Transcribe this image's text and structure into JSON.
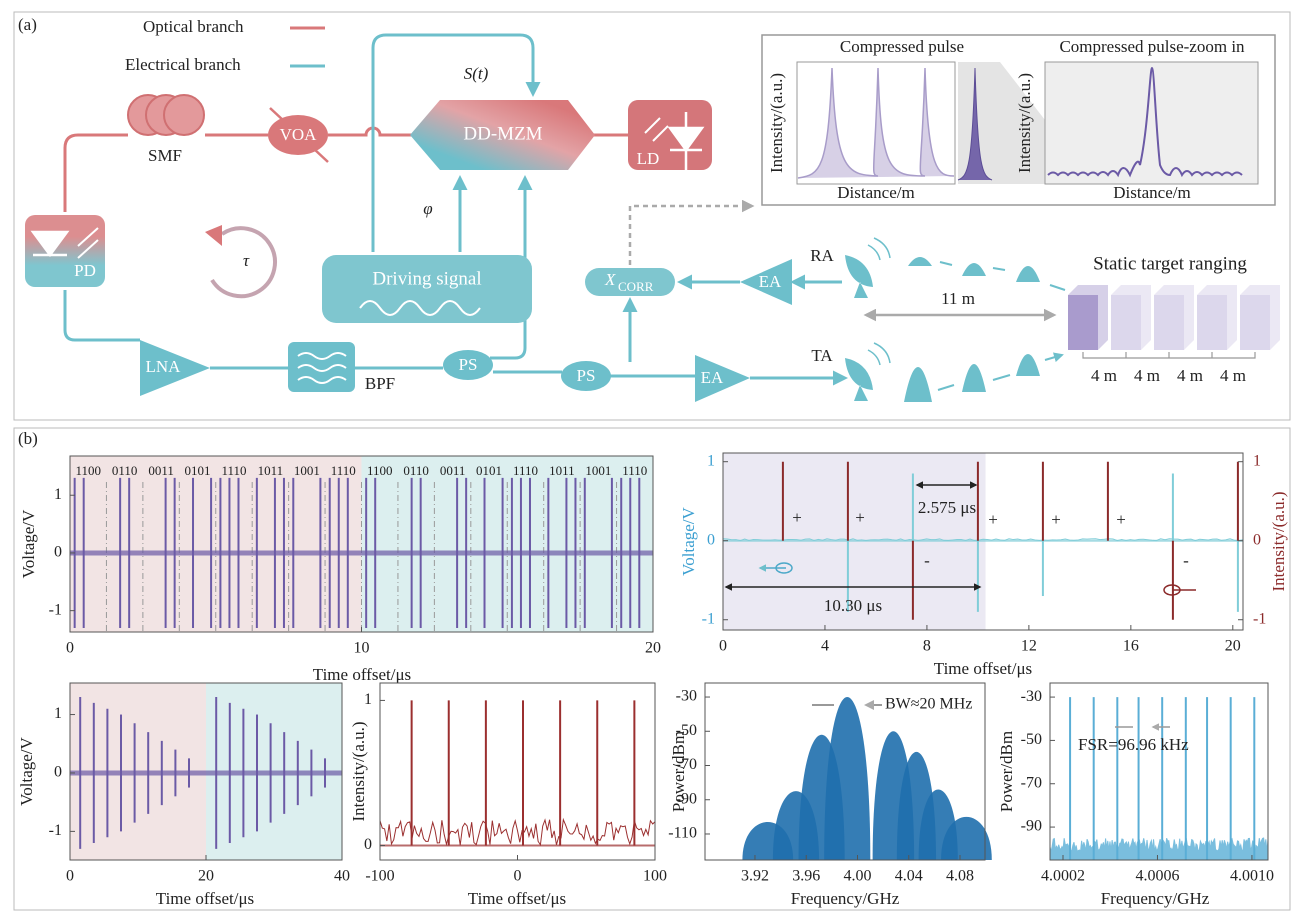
{
  "panel_a": {
    "label": "(a)",
    "legend": {
      "optical": "Optical branch",
      "electrical": "Electrical branch"
    },
    "components": {
      "smf": "SMF",
      "voa": "VOA",
      "mzm": "DD-MZM",
      "ld": "LD",
      "pd": "PD",
      "driving": "Driving signal",
      "lna": "LNA",
      "bpf": "BPF",
      "ps1": "PS",
      "ps2": "PS",
      "ea1": "EA",
      "ea2": "EA",
      "ra": "RA",
      "ta": "TA",
      "xcorr": "X",
      "xcorr_sub": "CORR"
    },
    "symbols": {
      "signal": "S(t)",
      "phase": "φ",
      "delay": "τ"
    },
    "inset": {
      "title_left": "Compressed pulse",
      "title_right": "Compressed pulse-zoom in",
      "ylabel_left": "Intensity/(a.u.)",
      "ylabel_right": "Intensity/(a.u.)",
      "xlabel_left": "Distance/m",
      "xlabel_right": "Distance/m"
    },
    "ranging": {
      "title": "Static target ranging",
      "distance": "11 m",
      "spacings": [
        "4 m",
        "4 m",
        "4 m",
        "4 m"
      ]
    }
  },
  "panel_b": {
    "label": "(b)",
    "charts": [
      {
        "type": "spikes",
        "codes": [
          "1100",
          "0110",
          "0011",
          "0101",
          "1110",
          "1011",
          "1001",
          "1110",
          "1100",
          "0110",
          "0011",
          "0101",
          "1110",
          "1011",
          "1001",
          "1110"
        ],
        "spans": [
          {
            "from": 0,
            "to": 10,
            "color": "#f2e4e4"
          },
          {
            "from": 10,
            "to": 20,
            "color": "#dcefef"
          }
        ],
        "xlim": [
          0,
          20
        ],
        "ylim": [
          -1.37,
          1.68
        ],
        "xticks": [
          0,
          10,
          20
        ],
        "yticks": [
          -1,
          0,
          1
        ],
        "xlabel": "Time offset/μs",
        "ylabel": "Voltage/V",
        "series": [
          {
            "color": "#6b5aa6",
            "x": [
              0.16,
              0.47,
              1.72,
              2.03,
              3.28,
              3.59,
              4.22,
              4.84,
              5.16,
              5.47,
              5.78,
              6.41,
              7.03,
              7.34,
              7.66,
              8.59,
              8.91,
              9.22,
              9.53,
              10.16,
              10.47,
              11.72,
              12.03,
              13.28,
              13.59,
              14.22,
              14.84,
              15.16,
              15.47,
              15.78,
              16.41,
              17.03,
              17.34,
              17.66,
              18.59,
              18.91,
              19.22,
              19.53
            ],
            "values": [
              1.3,
              1.3,
              1.3,
              1.3,
              1.3,
              1.3,
              1.3,
              1.3,
              1.3,
              1.3,
              1.3,
              1.3,
              1.3,
              1.3,
              1.3,
              1.3,
              1.3,
              1.3,
              1.3,
              1.3,
              1.3,
              1.3,
              1.3,
              1.3,
              1.3,
              1.3,
              1.3,
              1.3,
              1.3,
              1.3,
              1.3,
              1.3,
              1.3,
              1.3,
              1.3,
              1.3,
              1.3,
              1.3
            ]
          }
        ]
      },
      {
        "type": "stems",
        "spans": [
          {
            "from": 0,
            "to": 10.3,
            "color": "#ebe9f3"
          }
        ],
        "xlim": [
          0,
          20.4
        ],
        "ylim": [
          -1.13,
          1.11
        ],
        "y2lim": [
          -1.13,
          1.11
        ],
        "xticks": [
          0,
          4,
          8,
          12,
          16,
          20
        ],
        "yticks": [
          -1,
          0,
          1
        ],
        "y2ticks": [
          -1,
          0,
          1
        ],
        "xlabel": "Time offset/μs",
        "ylabel": "Voltage/V",
        "y2label": "Intensity/(a.u.)",
        "annotations": {
          "interval": "2.575 μs",
          "window": "10.30 μs",
          "plus": [
            "+",
            "+",
            "+",
            "+",
            "+"
          ],
          "minus": [
            "-",
            "-"
          ]
        },
        "series": [
          {
            "color": "#80cdd8",
            "x": [
              4.9,
              7.45,
              10.0,
              12.55,
              17.65,
              20.2
            ],
            "values": [
              -0.9,
              0.85,
              -0.9,
              -0.7,
              0.85,
              -0.9
            ]
          },
          {
            "color": "#8b2a2a",
            "axis": "y2",
            "x": [
              2.35,
              4.9,
              7.45,
              10.0,
              12.55,
              15.1,
              17.65,
              20.2
            ],
            "values": [
              1,
              1,
              -1,
              1,
              1,
              1,
              -1,
              1
            ]
          }
        ]
      },
      {
        "type": "spikes",
        "spans": [
          {
            "from": 0,
            "to": 20,
            "color": "#f2e4e4"
          },
          {
            "from": 20,
            "to": 40,
            "color": "#dcefef"
          }
        ],
        "xlim": [
          0,
          40
        ],
        "ylim": [
          -1.49,
          1.54
        ],
        "xticks": [
          0,
          20,
          40
        ],
        "yticks": [
          -1,
          0,
          1
        ],
        "xlabel": "Time offset/μs",
        "ylabel": "Voltage/V",
        "series": [
          {
            "color": "#6b5aa6",
            "x": [
              1.5,
              3.5,
              5.5,
              7.5,
              9.5,
              11.5,
              13.5,
              15.5,
              17.5,
              21.5,
              23.5,
              25.5,
              27.5,
              29.5,
              31.5,
              33.5,
              35.5,
              37.5
            ],
            "values": [
              1.3,
              1.2,
              1.1,
              1.0,
              0.85,
              0.7,
              0.55,
              0.4,
              0.25,
              1.3,
              1.2,
              1.1,
              1.0,
              0.85,
              0.7,
              0.55,
              0.4,
              0.25
            ]
          }
        ]
      },
      {
        "type": "stems",
        "xlim": [
          -100,
          100
        ],
        "ylim": [
          -0.1,
          1.12
        ],
        "xticks": [
          -100,
          0,
          100
        ],
        "yticks": [
          0,
          1
        ],
        "xlabel": "Time offset/μs",
        "ylabel": "Intensity/(a.u.)",
        "series": [
          {
            "color": "#9b2f2f",
            "x": [
              -77,
              -50,
              -23,
              4,
              31,
              58,
              85
            ],
            "values": [
              1,
              1,
              1,
              1,
              1,
              1,
              1
            ]
          }
        ]
      },
      {
        "type": "lobes",
        "xlim": [
          3.881,
          4.0995
        ],
        "ylim": [
          -125.2,
          -21.8
        ],
        "xticks": [
          3.92,
          3.96,
          {
            "value": 4,
            "label": "4.00"
          },
          4.04,
          4.08
        ],
        "yticks": [
          -30,
          -50,
          -70,
          -90,
          -110
        ],
        "xlabel": "Frequency/GHz",
        "ylabel": "Power/dBm",
        "annotation": "BW≈20 MHz",
        "series": [
          {
            "color": "#1f6fad",
            "x": [
              3.93,
              3.952,
              3.972,
              3.992,
              4.028,
              4.046,
              4.063,
              4.085
            ],
            "values": [
              -103,
              -85,
              -52,
              -30,
              -50,
              -62,
              -84,
              -100
            ]
          }
        ]
      },
      {
        "type": "comb",
        "xlim": [
          4.000145,
          4.001068
        ],
        "ylim": [
          -105.2,
          -23.5
        ],
        "xticks": [
          4.0002,
          4.0006,
          {
            "value": 4.001,
            "label": "4.0010"
          }
        ],
        "yticks": [
          -30,
          -50,
          -70,
          -90
        ],
        "xlabel": "Frequency/GHz",
        "ylabel": "Power/dBm",
        "annotation": "FSR=96.96 kHz",
        "series": [
          {
            "color": "#5aaed6",
            "x": [
              4.00023,
              4.00033,
              4.00043,
              4.00052,
              4.00062,
              4.00072,
              4.00081,
              4.00091,
              4.00101
            ],
            "values": [
              -30,
              -30,
              -30,
              -30,
              -30,
              -30,
              -30,
              -30,
              -30
            ]
          }
        ]
      }
    ]
  }
}
